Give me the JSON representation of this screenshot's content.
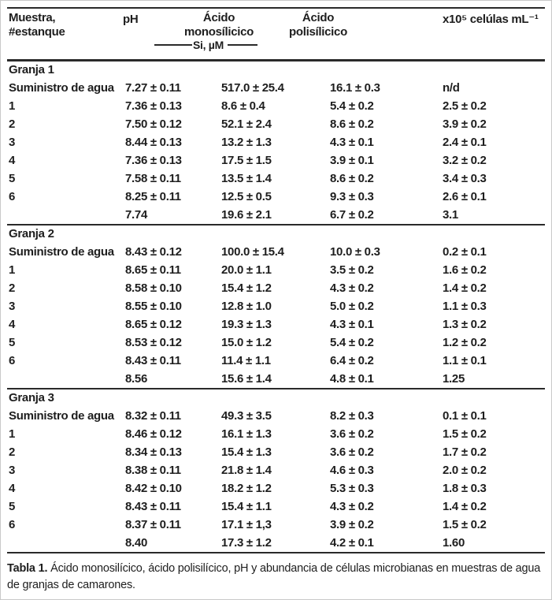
{
  "page": {
    "background": "#ffffff",
    "text_color": "#1e1e1e",
    "rule_color": "#2a2a2a"
  },
  "header": {
    "col_muestra_line1": "Muestra,",
    "col_muestra_line2": "#estanque",
    "col_ph": "pH",
    "col_mono_line1": "Ácido",
    "col_mono_line2": "monosílicico",
    "col_poli_line1": "Ácido",
    "col_poli_line2": "polisílicico",
    "col_celulas": "x10⁵ celúlas mL⁻¹",
    "units_label": "Si, µM"
  },
  "sections": [
    {
      "label": "Granja 1",
      "rows": [
        {
          "muestra": "Suministro de agua",
          "ph": "7.27 ± 0.11",
          "mono": "517.0 ± 25.4",
          "poli": "16.1 ± 0.3",
          "celulas": "n/d"
        },
        {
          "muestra": "1",
          "ph": "7.36 ± 0.13",
          "mono": "8.6 ± 0.4",
          "poli": "5.4 ± 0.2",
          "celulas": "2.5 ± 0.2"
        },
        {
          "muestra": "2",
          "ph": "7.50 ± 0.12",
          "mono": "52.1 ± 2.4",
          "poli": "8.6 ± 0.2",
          "celulas": "3.9 ± 0.2"
        },
        {
          "muestra": "3",
          "ph": "8.44 ± 0.13",
          "mono": "13.2 ± 1.3",
          "poli": "4.3 ± 0.1",
          "celulas": "2.4 ± 0.1"
        },
        {
          "muestra": "4",
          "ph": "7.36 ± 0.13",
          "mono": "17.5 ± 1.5",
          "poli": "3.9 ± 0.1",
          "celulas": "3.2 ± 0.2"
        },
        {
          "muestra": "5",
          "ph": "7.58 ± 0.11",
          "mono": "13.5 ± 1.4",
          "poli": "8.6 ± 0.2",
          "celulas": "3.4 ± 0.3"
        },
        {
          "muestra": "6",
          "ph": "8.25 ± 0.11",
          "mono": "12.5 ± 0.5",
          "poli": "9.3 ± 0.3",
          "celulas": "2.6 ± 0.1"
        },
        {
          "muestra": "",
          "ph": "7.74",
          "mono": "19.6 ± 2.1",
          "poli": "6.7 ± 0.2",
          "celulas": "3.1"
        }
      ]
    },
    {
      "label": "Granja 2",
      "rows": [
        {
          "muestra": "Suministro de agua",
          "ph": "8.43 ± 0.12",
          "mono": "100.0 ± 15.4",
          "poli": "10.0 ± 0.3",
          "celulas": "0.2 ± 0.1"
        },
        {
          "muestra": "1",
          "ph": "8.65 ± 0.11",
          "mono": "20.0 ± 1.1",
          "poli": "3.5 ± 0.2",
          "celulas": "1.6 ± 0.2"
        },
        {
          "muestra": "2",
          "ph": "8.58 ± 0.10",
          "mono": "15.4 ± 1.2",
          "poli": "4.3 ± 0.2",
          "celulas": "1.4 ± 0.2"
        },
        {
          "muestra": "3",
          "ph": "8.55 ± 0.10",
          "mono": "12.8 ± 1.0",
          "poli": "5.0 ± 0.2",
          "celulas": "1.1 ± 0.3"
        },
        {
          "muestra": "4",
          "ph": "8.65 ± 0.12",
          "mono": "19.3 ± 1.3",
          "poli": "4.3 ± 0.1",
          "celulas": "1.3 ± 0.2"
        },
        {
          "muestra": "5",
          "ph": "8.53 ± 0.12",
          "mono": "15.0 ± 1.2",
          "poli": "5.4 ± 0.2",
          "celulas": "1.2 ± 0.2"
        },
        {
          "muestra": "6",
          "ph": "8.43 ± 0.11",
          "mono": "11.4 ± 1.1",
          "poli": "6.4 ± 0.2",
          "celulas": "1.1 ± 0.1"
        },
        {
          "muestra": "",
          "ph": "8.56",
          "mono": "15.6 ± 1.4",
          "poli": "4.8 ± 0.1",
          "celulas": "1.25"
        }
      ]
    },
    {
      "label": "Granja 3",
      "rows": [
        {
          "muestra": "Suministro de agua",
          "ph": "8.32 ± 0.11",
          "mono": "49.3 ± 3.5",
          "poli": "8.2 ± 0.3",
          "celulas": "0.1 ± 0.1"
        },
        {
          "muestra": "1",
          "ph": "8.46 ± 0.12",
          "mono": "16.1 ± 1.3",
          "poli": "3.6 ± 0.2",
          "celulas": "1.5 ± 0.2"
        },
        {
          "muestra": "2",
          "ph": "8.34 ± 0.13",
          "mono": "15.4 ± 1.3",
          "poli": "3.6 ± 0.2",
          "celulas": "1.7 ± 0.2"
        },
        {
          "muestra": "3",
          "ph": "8.38 ± 0.11",
          "mono": "21.8 ± 1.4",
          "poli": "4.6 ± 0.3",
          "celulas": "2.0 ± 0.2"
        },
        {
          "muestra": "4",
          "ph": "8.42 ± 0.10",
          "mono": "18.2 ± 1.2",
          "poli": "5.3 ± 0.3",
          "celulas": "1.8 ± 0.3"
        },
        {
          "muestra": "5",
          "ph": "8.43 ± 0.11",
          "mono": "15.4 ± 1.1",
          "poli": "4.3 ± 0.2",
          "celulas": "1.4 ± 0.2"
        },
        {
          "muestra": "6",
          "ph": "8.37 ± 0.11",
          "mono": "17.1 ± 1,3",
          "poli": "3.9 ± 0.2",
          "celulas": "1.5 ± 0.2"
        },
        {
          "muestra": "",
          "ph": "8.40",
          "mono": "17.3 ± 1.2",
          "poli": "4.2 ± 0.1",
          "celulas": "1.60"
        }
      ]
    }
  ],
  "caption": {
    "label": "Tabla 1.",
    "text": " Ácido monosilícico, ácido polisilícico, pH y abundancia de células microbianas en muestras de agua de granjas de camarones."
  }
}
